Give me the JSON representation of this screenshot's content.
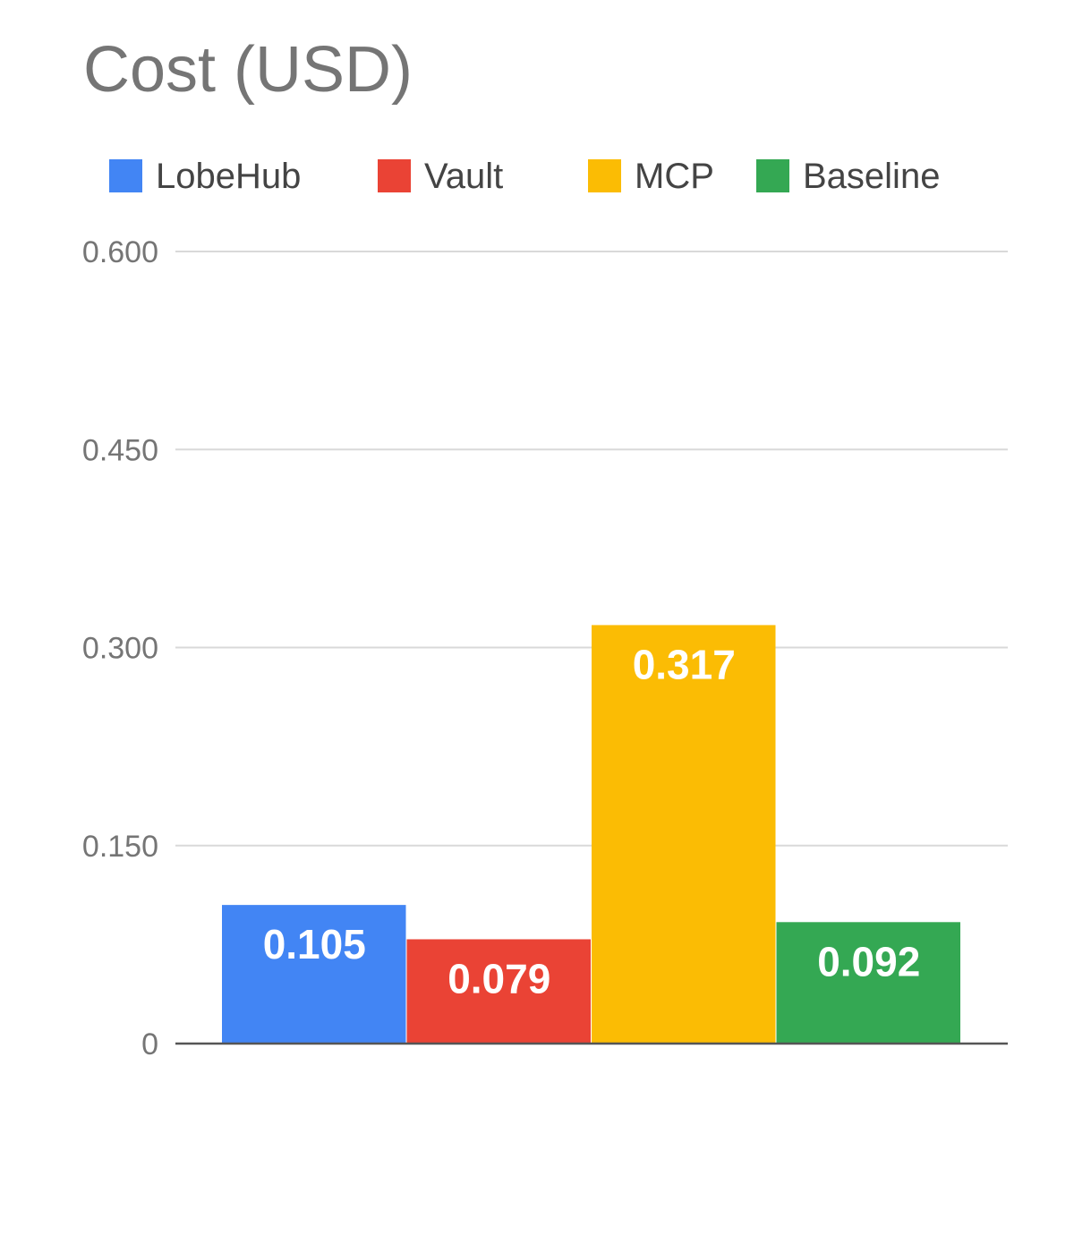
{
  "chart_data": {
    "type": "bar",
    "title": "Cost (USD)",
    "categories": [
      ""
    ],
    "series": [
      {
        "name": "LobeHub",
        "values": [
          0.105
        ],
        "color": "#4285F4"
      },
      {
        "name": "Vault",
        "values": [
          0.079
        ],
        "color": "#EA4335"
      },
      {
        "name": "MCP",
        "values": [
          0.317
        ],
        "color": "#FBBC04"
      },
      {
        "name": "Baseline",
        "values": [
          0.092
        ],
        "color": "#34A853"
      }
    ],
    "data_labels": [
      "0.105",
      "0.079",
      "0.317",
      "0.092"
    ],
    "ylim": [
      0,
      0.6
    ],
    "yticks": [
      0,
      0.15,
      0.3,
      0.45,
      0.6
    ],
    "ytick_labels": [
      "0",
      "0.150",
      "0.300",
      "0.450",
      "0.600"
    ],
    "grid": true,
    "legend_position": "top"
  }
}
